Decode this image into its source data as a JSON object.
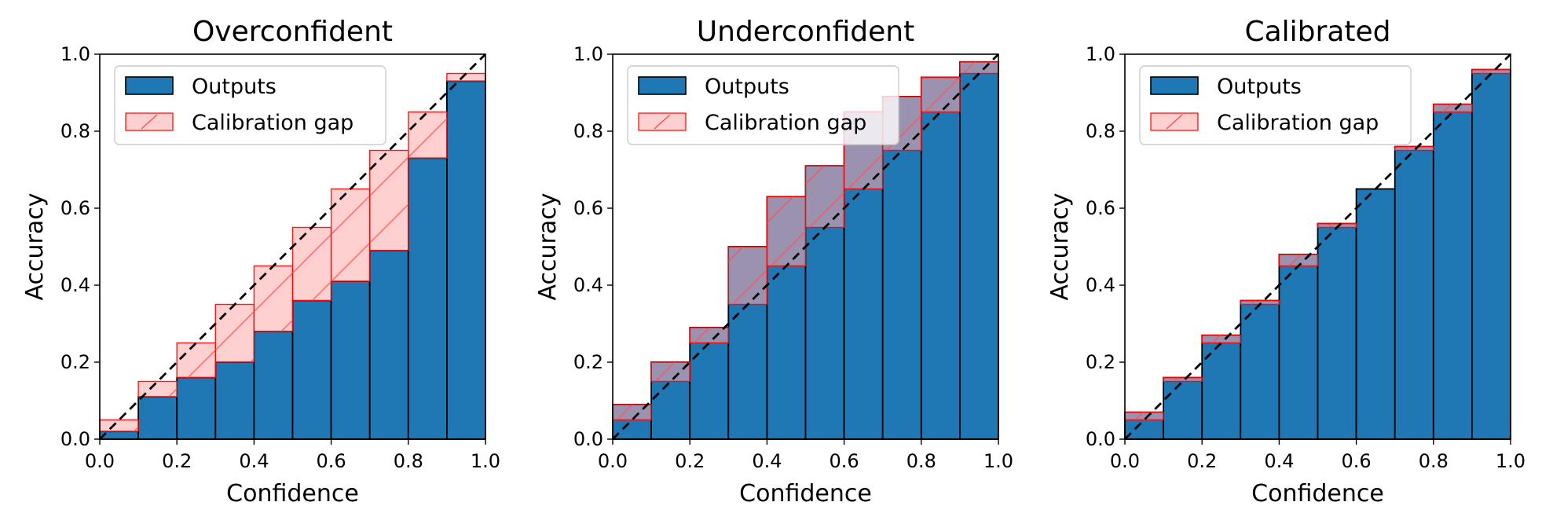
{
  "chart_data": [
    {
      "type": "bar",
      "title": "Overconfident",
      "xlabel": "Confidence",
      "ylabel": "Accuracy",
      "xlim": [
        0,
        1
      ],
      "ylim": [
        0,
        1
      ],
      "xticks": [
        "0.0",
        "0.2",
        "0.4",
        "0.6",
        "0.8",
        "1.0"
      ],
      "yticks": [
        "0.0",
        "0.2",
        "0.4",
        "0.6",
        "0.8",
        "1.0"
      ],
      "bin_edges": [
        0.0,
        0.1,
        0.2,
        0.3,
        0.4,
        0.5,
        0.6,
        0.7,
        0.8,
        0.9,
        1.0
      ],
      "series": [
        {
          "name": "Outputs",
          "values": [
            0.02,
            0.11,
            0.16,
            0.2,
            0.28,
            0.36,
            0.41,
            0.49,
            0.73,
            0.93
          ]
        },
        {
          "name": "Calibration gap",
          "values": [
            0.05,
            0.15,
            0.25,
            0.35,
            0.45,
            0.55,
            0.65,
            0.75,
            0.85,
            0.95
          ]
        }
      ],
      "diagonal": true,
      "legend": "top-left",
      "grid": false
    },
    {
      "type": "bar",
      "title": "Underconfident",
      "xlabel": "Confidence",
      "ylabel": "Accuracy",
      "xlim": [
        0,
        1
      ],
      "ylim": [
        0,
        1
      ],
      "xticks": [
        "0.0",
        "0.2",
        "0.4",
        "0.6",
        "0.8",
        "1.0"
      ],
      "yticks": [
        "0.0",
        "0.2",
        "0.4",
        "0.6",
        "0.8",
        "1.0"
      ],
      "bin_edges": [
        0.0,
        0.1,
        0.2,
        0.3,
        0.4,
        0.5,
        0.6,
        0.7,
        0.8,
        0.9,
        1.0
      ],
      "series": [
        {
          "name": "Outputs",
          "values": [
            0.09,
            0.2,
            0.29,
            0.5,
            0.63,
            0.71,
            0.85,
            0.89,
            0.94,
            0.98
          ]
        },
        {
          "name": "Calibration gap",
          "values": [
            0.05,
            0.15,
            0.25,
            0.35,
            0.45,
            0.55,
            0.65,
            0.75,
            0.85,
            0.95
          ]
        }
      ],
      "diagonal": true,
      "legend": "top-left",
      "grid": false
    },
    {
      "type": "bar",
      "title": "Calibrated",
      "xlabel": "Confidence",
      "ylabel": "Accuracy",
      "xlim": [
        0,
        1
      ],
      "ylim": [
        0,
        1
      ],
      "xticks": [
        "0.0",
        "0.2",
        "0.4",
        "0.6",
        "0.8",
        "1.0"
      ],
      "yticks": [
        "0.0",
        "0.2",
        "0.4",
        "0.6",
        "0.8",
        "1.0"
      ],
      "bin_edges": [
        0.0,
        0.1,
        0.2,
        0.3,
        0.4,
        0.5,
        0.6,
        0.7,
        0.8,
        0.9,
        1.0
      ],
      "series": [
        {
          "name": "Outputs",
          "values": [
            0.07,
            0.16,
            0.27,
            0.36,
            0.48,
            0.56,
            0.65,
            0.76,
            0.87,
            0.96
          ]
        },
        {
          "name": "Calibration gap",
          "values": [
            0.05,
            0.15,
            0.25,
            0.35,
            0.45,
            0.55,
            0.65,
            0.75,
            0.85,
            0.95
          ]
        }
      ],
      "diagonal": true,
      "legend": "top-left",
      "grid": false
    }
  ],
  "colors": {
    "outputs_fill": "#1f77b4",
    "outputs_edge": "#000000",
    "gap_fill": "#ffaaaa",
    "gap_edge": "#ff0000",
    "diagonal": "#000000"
  }
}
